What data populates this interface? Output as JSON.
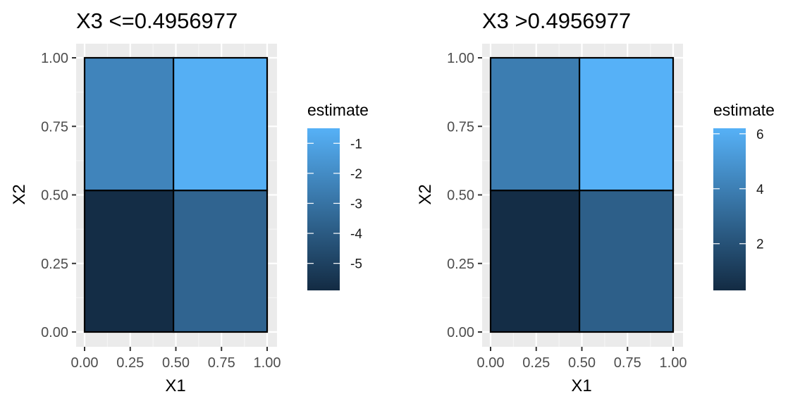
{
  "chart_data": [
    {
      "type": "heatmap",
      "title": "X3 <=0.4956977",
      "xlabel": "X1",
      "ylabel": "X2",
      "xlim": [
        0,
        1
      ],
      "ylim": [
        0,
        1
      ],
      "x_ticks": [
        "0.00",
        "0.25",
        "0.50",
        "0.75",
        "1.00"
      ],
      "y_ticks": [
        "0.00",
        "0.25",
        "0.50",
        "0.75",
        "1.00"
      ],
      "x_breaks": [
        0,
        0.4868,
        1
      ],
      "y_breaks": [
        0,
        0.5164,
        1
      ],
      "cells": [
        {
          "x": [
            0,
            0.4868
          ],
          "y": [
            0,
            0.5164
          ],
          "estimate": -5.8
        },
        {
          "x": [
            0.4868,
            1
          ],
          "y": [
            0,
            0.5164
          ],
          "estimate": -3.6
        },
        {
          "x": [
            0,
            0.4868
          ],
          "y": [
            0.5164,
            1
          ],
          "estimate": -2.3
        },
        {
          "x": [
            0.4868,
            1
          ],
          "y": [
            0.5164,
            1
          ],
          "estimate": -0.6
        }
      ],
      "legend": {
        "title": "estimate",
        "range": [
          -5.9,
          -0.5
        ],
        "ticks": [
          -1,
          -2,
          -3,
          -4,
          -5
        ],
        "tick_labels": [
          "-1",
          "-2",
          "-3",
          "-4",
          "-5"
        ],
        "low_color": "#132b43",
        "high_color": "#56b1f7"
      },
      "grid": true,
      "background": "#ebebeb"
    },
    {
      "type": "heatmap",
      "title": "X3 >0.4956977",
      "xlabel": "X1",
      "ylabel": "X2",
      "xlim": [
        0,
        1
      ],
      "ylim": [
        0,
        1
      ],
      "x_ticks": [
        "0.00",
        "0.25",
        "0.50",
        "0.75",
        "1.00"
      ],
      "y_ticks": [
        "0.00",
        "0.25",
        "0.50",
        "0.75",
        "1.00"
      ],
      "x_breaks": [
        0,
        0.4868,
        1
      ],
      "y_breaks": [
        0,
        0.5164,
        1
      ],
      "cells": [
        {
          "x": [
            0,
            0.4868
          ],
          "y": [
            0,
            0.5164
          ],
          "estimate": 0.4
        },
        {
          "x": [
            0.4868,
            1
          ],
          "y": [
            0,
            0.5164
          ],
          "estimate": 2.6
        },
        {
          "x": [
            0,
            0.4868
          ],
          "y": [
            0.5164,
            1
          ],
          "estimate": 3.9
        },
        {
          "x": [
            0.4868,
            1
          ],
          "y": [
            0.5164,
            1
          ],
          "estimate": 6.2
        }
      ],
      "legend": {
        "title": "estimate",
        "range": [
          0.3,
          6.2
        ],
        "ticks": [
          6,
          4,
          2
        ],
        "tick_labels": [
          "6",
          "4",
          "2"
        ],
        "low_color": "#132b43",
        "high_color": "#56b1f7"
      },
      "grid": true,
      "background": "#ebebeb"
    }
  ]
}
